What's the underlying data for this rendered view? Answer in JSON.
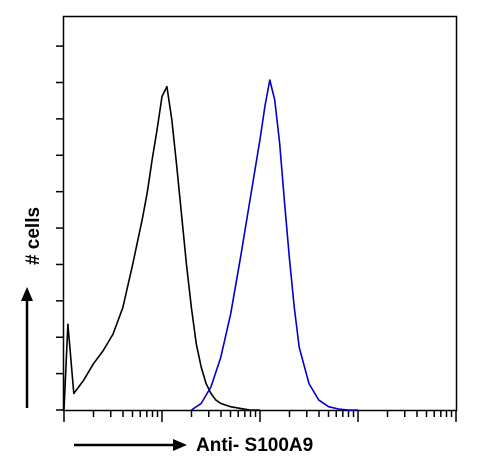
{
  "chart_data": {
    "type": "line",
    "title": "",
    "xlabel": "Anti- S100A9",
    "ylabel": "# cells",
    "xscale": "log",
    "xlim": [
      0,
      4
    ],
    "ylim": [
      0,
      100
    ],
    "grid": false,
    "legend": "none",
    "series": [
      {
        "color": "#000000",
        "x": [
          0.0,
          0.04,
          0.1,
          0.2,
          0.3,
          0.4,
          0.5,
          0.6,
          0.7,
          0.8,
          0.85,
          0.9,
          0.95,
          1.0,
          1.05,
          1.1,
          1.15,
          1.2,
          1.25,
          1.3,
          1.35,
          1.4,
          1.45,
          1.5,
          1.55,
          1.6,
          1.65,
          1.7,
          1.8,
          1.9,
          2.0
        ],
        "y": [
          0,
          26,
          5,
          9,
          14,
          18,
          23,
          31,
          44,
          58,
          66,
          76,
          85,
          95,
          98,
          88,
          74,
          59,
          44,
          31,
          20,
          13,
          8,
          5,
          3,
          2,
          1.5,
          1,
          0.5,
          0,
          0
        ]
      },
      {
        "color": "#0000cc",
        "x": [
          1.3,
          1.4,
          1.5,
          1.6,
          1.7,
          1.8,
          1.9,
          2.0,
          2.05,
          2.1,
          2.15,
          2.2,
          2.25,
          2.3,
          2.35,
          2.4,
          2.5,
          2.6,
          2.7,
          2.8,
          2.9,
          3.0
        ],
        "y": [
          0,
          2,
          7,
          16,
          29,
          46,
          64,
          82,
          92,
          100,
          94,
          81,
          63,
          46,
          31,
          19,
          8,
          3,
          1,
          0.3,
          0,
          0
        ]
      }
    ]
  }
}
